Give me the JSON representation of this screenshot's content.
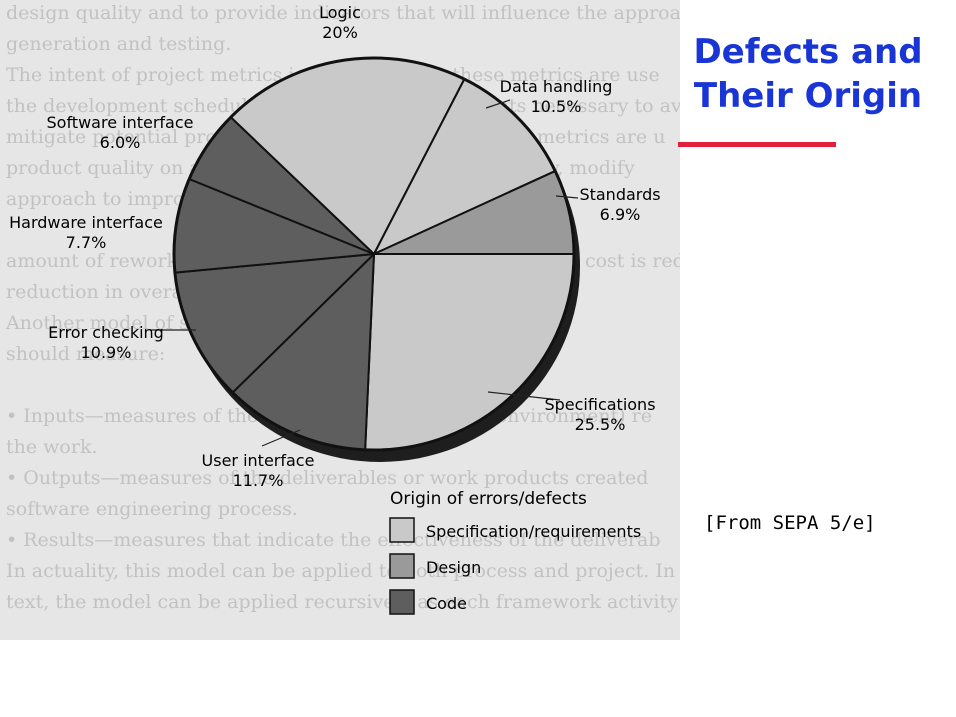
{
  "slide": {
    "title_line1": "Defects and",
    "title_line2": "Their Origin",
    "source_note": "[From SEPA 5/e]",
    "title_color": "#1a35d6",
    "rule_color": "#e3203a"
  },
  "background_text": [
    "design quality and to provide indicators that will influence the approach",
    "generation and testing.",
    "The intent of project metrics is twofold. First, these metrics are use",
    "the development schedule by making the adjustments necessary to avo",
    "mitigate potential problems and risks. Second, project metrics are u",
    "product quality on an ongoing basis and, when necessary, modify",
    "approach to improve quality.",
    "",
    "amount of rework required by each, and the overall project cost is reduced. T",
    "reduction in overall project cost.",
    "Another model of software metrics suggests that",
    "should measure:",
    "",
    "• Inputs—measures of the resources (e.g., people, environment) re",
    "   the work.",
    "• Outputs—measures of the deliverables or work products created",
    "   software engineering process.",
    "• Results—measures that indicate the effectiveness of the deliverab",
    "In actuality, this model can be applied to both process and project. In th",
    "text, the model can be applied recursively as each framework activity e"
  ],
  "chart_data": {
    "type": "pie",
    "title": "",
    "slices": [
      {
        "name": "Specifications",
        "value": 25.5,
        "label": "Specifications",
        "value_label": "25.5%",
        "category": "Specification/requirements"
      },
      {
        "name": "User interface",
        "value": 11.7,
        "label": "User interface",
        "value_label": "11.7%",
        "category": "Code"
      },
      {
        "name": "Error checking",
        "value": 10.9,
        "label": "Error checking",
        "value_label": "10.9%",
        "category": "Code"
      },
      {
        "name": "Hardware interface",
        "value": 7.7,
        "label": "Hardware interface",
        "value_label": "7.7%",
        "category": "Code"
      },
      {
        "name": "Software interface",
        "value": 6.0,
        "label": "Software interface",
        "value_label": "6.0%",
        "category": "Code"
      },
      {
        "name": "Logic",
        "value": 20.0,
        "label": "Logic",
        "value_label": "20%",
        "category": "Specification/requirements"
      },
      {
        "name": "Data handling",
        "value": 10.5,
        "label": "Data handling",
        "value_label": "10.5%",
        "category": "Specification/requirements"
      },
      {
        "name": "Standards",
        "value": 6.9,
        "label": "Standards",
        "value_label": "6.9%",
        "category": "Design"
      }
    ],
    "legend": {
      "title": "Origin of errors/defects",
      "placement": "bottom-right",
      "entries": [
        {
          "name": "Specification/requirements",
          "color": "#c9c9c9"
        },
        {
          "name": "Design",
          "color": "#9a9a9a"
        },
        {
          "name": "Code",
          "color": "#5e5e5e"
        }
      ]
    }
  }
}
